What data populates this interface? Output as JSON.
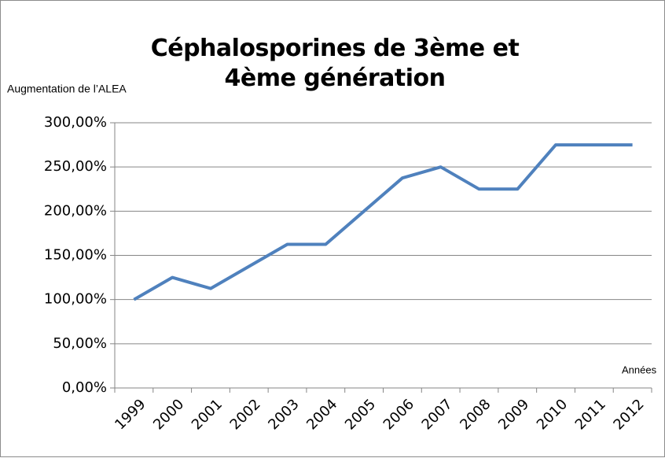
{
  "chart_data": {
    "type": "line",
    "title": "Céphalosporines de 3ème et 4ème génération",
    "y_label": "Augmentation de l’ALEA",
    "x_label": "Années",
    "categories": [
      "1999",
      "2000",
      "2001",
      "2002",
      "2003",
      "2004",
      "2005",
      "2006",
      "2007",
      "2008",
      "2009",
      "2010",
      "2011",
      "2012"
    ],
    "values": [
      100,
      125,
      112.5,
      137.5,
      162.5,
      162.5,
      200,
      237.5,
      250,
      225,
      225,
      275,
      275,
      275
    ],
    "color": "#4f81bd",
    "ylim": [
      0,
      300
    ],
    "yticks": [
      {
        "value": 0,
        "label": "0,00%"
      },
      {
        "value": 50,
        "label": "50,00%"
      },
      {
        "value": 100,
        "label": "100,00%"
      },
      {
        "value": 150,
        "label": "150,00%"
      },
      {
        "value": 200,
        "label": "200,00%"
      },
      {
        "value": 250,
        "label": "250,00%"
      },
      {
        "value": 300,
        "label": "300,00%"
      }
    ],
    "grid": true
  }
}
